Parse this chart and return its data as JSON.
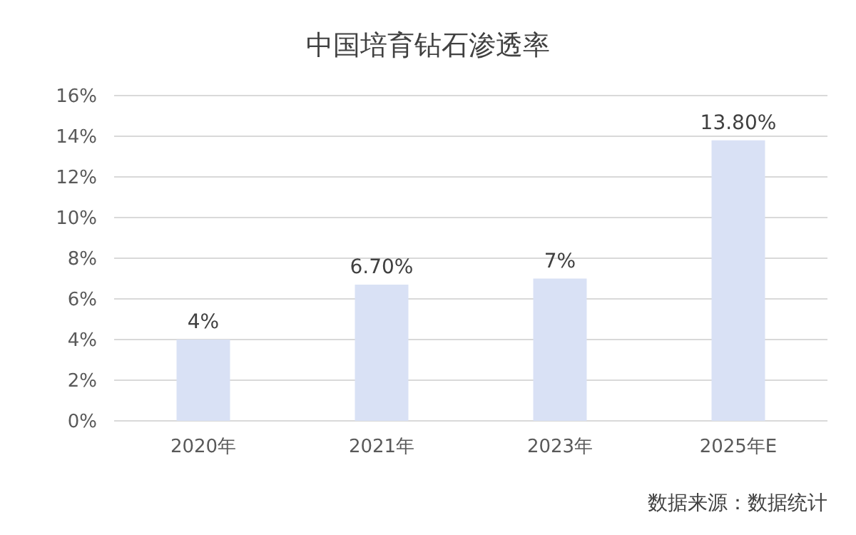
{
  "chart_data": {
    "type": "bar",
    "title": "中国培育钻石渗透率",
    "categories": [
      "2020年",
      "2021年",
      "2023年",
      "2025年E"
    ],
    "values": [
      4,
      6.7,
      7,
      13.8
    ],
    "value_labels": [
      "4%",
      "6.70%",
      "7%",
      "13.80%"
    ],
    "color": "#d9e1f5",
    "ylim": [
      0,
      16
    ],
    "yticks": [
      {
        "value": 0,
        "label": "0%"
      },
      {
        "value": 2,
        "label": "2%"
      },
      {
        "value": 4,
        "label": "4%"
      },
      {
        "value": 6,
        "label": "6%"
      },
      {
        "value": 8,
        "label": "8%"
      },
      {
        "value": 10,
        "label": "10%"
      },
      {
        "value": 12,
        "label": "12%"
      },
      {
        "value": 14,
        "label": "14%"
      },
      {
        "value": 16,
        "label": "16%"
      }
    ],
    "grid": "y",
    "annotations": [
      "数据来源：数据统计"
    ]
  }
}
